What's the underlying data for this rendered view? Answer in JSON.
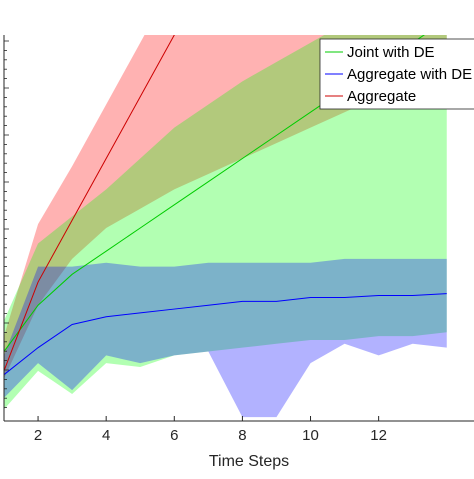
{
  "chart_data": {
    "type": "area",
    "title": "",
    "xlabel": "Time Steps",
    "ylabel": "",
    "xlim": [
      1,
      14.8
    ],
    "ylim": [
      0,
      1
    ],
    "x_ticks": [
      2,
      4,
      6,
      8,
      10,
      12
    ],
    "legend_position": "top-right",
    "grid": false,
    "series": [
      {
        "name": "Joint with DE",
        "color": "#00cc00",
        "band_color": "#00ff00",
        "x": [
          1,
          2,
          3,
          4,
          5,
          6,
          7,
          8,
          9,
          10,
          11,
          12,
          13,
          14
        ],
        "mean": [
          0.18,
          0.3,
          0.38,
          0.44,
          0.5,
          0.56,
          0.62,
          0.68,
          0.74,
          0.8,
          0.86,
          0.92,
          0.98,
          1.04
        ],
        "upper": [
          0.26,
          0.46,
          0.53,
          0.6,
          0.68,
          0.76,
          0.82,
          0.88,
          0.93,
          0.98,
          1.03,
          1.08,
          1.13,
          1.18
        ],
        "lower": [
          0.03,
          0.13,
          0.07,
          0.15,
          0.14,
          0.17,
          0.18,
          0.19,
          0.2,
          0.21,
          0.21,
          0.22,
          0.22,
          0.23
        ]
      },
      {
        "name": "Aggregate with DE",
        "color": "#0000ff",
        "band_color": "#0000ff",
        "x": [
          1,
          2,
          3,
          4,
          5,
          6,
          7,
          8,
          9,
          10,
          11,
          12,
          13,
          14
        ],
        "mean": [
          0.12,
          0.19,
          0.25,
          0.27,
          0.28,
          0.29,
          0.3,
          0.31,
          0.31,
          0.32,
          0.32,
          0.325,
          0.325,
          0.33
        ],
        "upper": [
          0.17,
          0.4,
          0.4,
          0.41,
          0.4,
          0.4,
          0.41,
          0.41,
          0.41,
          0.41,
          0.42,
          0.42,
          0.42,
          0.42
        ],
        "lower": [
          0.06,
          0.15,
          0.08,
          0.17,
          0.15,
          0.17,
          0.18,
          0.01,
          0.01,
          0.15,
          0.2,
          0.17,
          0.2,
          0.19
        ]
      },
      {
        "name": "Aggregate",
        "color": "#cc0000",
        "band_color": "#ff0000",
        "x": [
          1,
          2,
          3,
          4,
          5,
          6,
          7,
          8,
          9,
          10,
          11,
          12,
          13,
          14
        ],
        "mean": [
          0.13,
          0.36,
          0.52,
          0.68,
          0.84,
          1.0,
          1.16,
          1.32,
          1.48,
          1.64,
          1.8,
          1.96,
          2.12,
          2.28
        ],
        "upper": [
          0.22,
          0.51,
          0.66,
          0.82,
          0.98,
          1.14,
          1.3,
          1.46,
          1.62,
          1.78,
          1.94,
          2.1,
          2.26,
          2.42
        ],
        "lower": [
          0.11,
          0.3,
          0.42,
          0.5,
          0.55,
          0.6,
          0.64,
          0.68,
          0.72,
          0.76,
          0.8,
          0.84,
          0.88,
          0.92
        ]
      }
    ]
  }
}
